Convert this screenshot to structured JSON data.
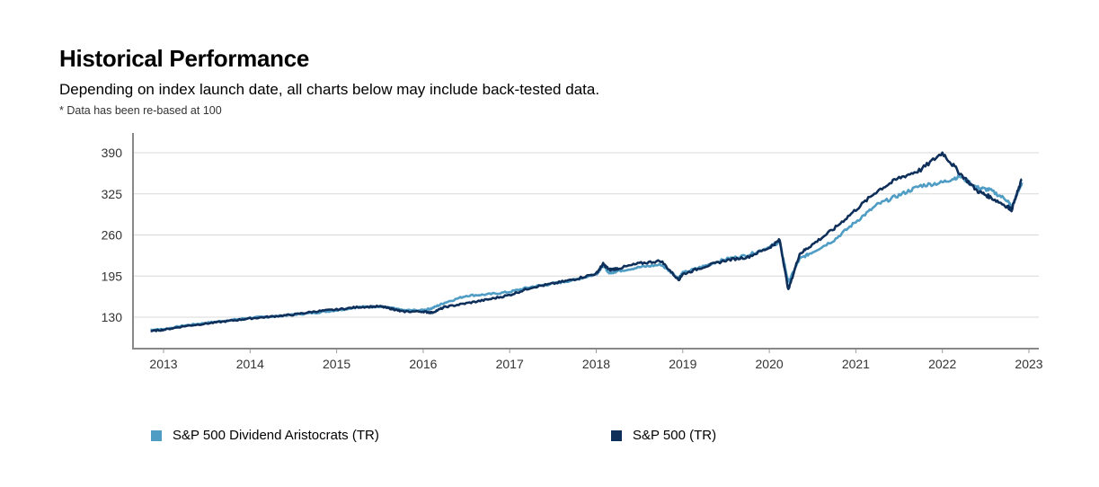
{
  "header": {
    "title": "Historical Performance",
    "subtitle": "Depending on index launch date, all charts below may include back-tested data.",
    "note": "* Data has been re-based at 100"
  },
  "chart_data": {
    "type": "line",
    "title": "Historical Performance",
    "xlabel": "",
    "ylabel": "",
    "xlim": [
      2012.85,
      2023.1
    ],
    "ylim": [
      80,
      400
    ],
    "yticks": [
      130,
      195,
      260,
      325,
      390
    ],
    "xticks": [
      2013,
      2014,
      2015,
      2016,
      2017,
      2018,
      2019,
      2020,
      2021,
      2022,
      2023
    ],
    "grid": true,
    "legend_position": "bottom",
    "series": [
      {
        "name": "S&P 500 Dividend Aristocrats (TR)",
        "color": "#4f9cc4",
        "x": [
          2012.85,
          2013.0,
          2013.25,
          2013.5,
          2013.75,
          2014.0,
          2014.25,
          2014.5,
          2014.75,
          2015.0,
          2015.25,
          2015.5,
          2015.65,
          2015.75,
          2016.0,
          2016.1,
          2016.25,
          2016.5,
          2016.75,
          2017.0,
          2017.25,
          2017.5,
          2017.75,
          2018.0,
          2018.08,
          2018.15,
          2018.25,
          2018.5,
          2018.75,
          2018.95,
          2019.0,
          2019.25,
          2019.5,
          2019.75,
          2020.0,
          2020.12,
          2020.22,
          2020.35,
          2020.5,
          2020.75,
          2021.0,
          2021.25,
          2021.5,
          2021.75,
          2022.0,
          2022.2,
          2022.4,
          2022.55,
          2022.75,
          2022.8,
          2022.92
        ],
        "y": [
          110,
          111,
          117,
          121,
          125,
          129,
          131,
          134,
          137,
          141,
          146,
          147,
          144,
          141,
          141,
          144,
          153,
          164,
          166,
          170,
          178,
          183,
          189,
          198,
          212,
          200,
          203,
          209,
          213,
          192,
          200,
          211,
          222,
          228,
          241,
          249,
          185,
          222,
          233,
          252,
          281,
          308,
          323,
          338,
          343,
          353,
          335,
          331,
          315,
          303,
          343
        ]
      },
      {
        "name": "S&P 500 (TR)",
        "color": "#0e2f5a",
        "x": [
          2012.85,
          2013.0,
          2013.25,
          2013.5,
          2013.75,
          2014.0,
          2014.25,
          2014.5,
          2014.75,
          2015.0,
          2015.25,
          2015.5,
          2015.65,
          2015.75,
          2016.0,
          2016.1,
          2016.25,
          2016.5,
          2016.75,
          2017.0,
          2017.25,
          2017.5,
          2017.75,
          2018.0,
          2018.08,
          2018.15,
          2018.25,
          2018.5,
          2018.75,
          2018.95,
          2019.0,
          2019.25,
          2019.5,
          2019.75,
          2020.0,
          2020.12,
          2020.22,
          2020.35,
          2020.5,
          2020.75,
          2021.0,
          2021.25,
          2021.5,
          2021.75,
          2022.0,
          2022.2,
          2022.4,
          2022.55,
          2022.75,
          2022.8,
          2022.92
        ],
        "y": [
          108,
          110,
          116,
          120,
          124,
          128,
          131,
          134,
          139,
          142,
          146,
          147,
          143,
          139,
          139,
          137,
          146,
          152,
          158,
          165,
          177,
          183,
          190,
          199,
          214,
          205,
          207,
          215,
          219,
          189,
          198,
          210,
          220,
          225,
          240,
          252,
          173,
          230,
          245,
          270,
          300,
          330,
          350,
          363,
          390,
          358,
          330,
          320,
          305,
          300,
          348
        ]
      }
    ]
  },
  "legend": [
    {
      "label": "S&P 500 Dividend Aristocrats (TR)",
      "color": "#4f9cc4"
    },
    {
      "label": "S&P 500 (TR)",
      "color": "#0e2f5a"
    }
  ]
}
